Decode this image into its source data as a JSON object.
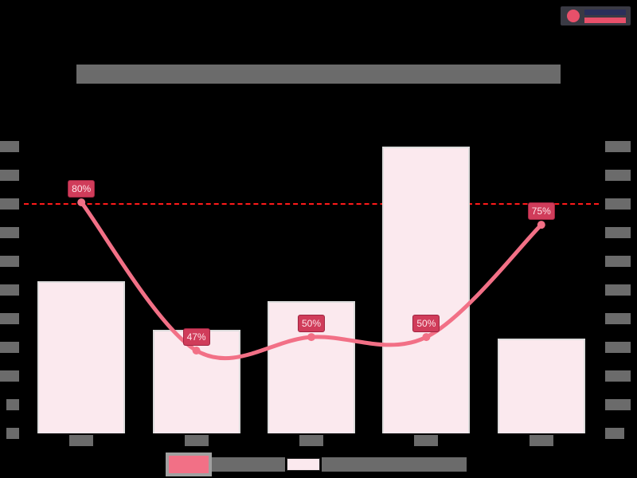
{
  "logo": {
    "name": ""
  },
  "chart_data": {
    "type": "bar",
    "title": "",
    "xlabel": "",
    "ylabel_left": "",
    "ylabel_right": "",
    "categories": [
      "",
      "",
      "",
      "",
      ""
    ],
    "left_axis_ticks": [
      "",
      "",
      "",
      "",
      "",
      "",
      "",
      "",
      "",
      "",
      ""
    ],
    "right_axis_ticks": [
      "",
      "",
      "",
      "",
      "",
      "",
      "",
      "",
      "",
      "",
      ""
    ],
    "series": [
      {
        "name": "",
        "type": "bar",
        "axis": "right",
        "color": "#fbe9ee",
        "relative_heights": [
          0.53,
          0.36,
          0.46,
          1.0,
          0.33
        ]
      },
      {
        "name": "",
        "type": "line",
        "axis": "left",
        "color": "#f27086",
        "smooth": true,
        "values": [
          80,
          47,
          50,
          50,
          75
        ],
        "data_labels": [
          "80%",
          "47%",
          "50%",
          "50%",
          "75%"
        ]
      }
    ],
    "reference_line": {
      "style": "dashed",
      "color": "#ff1a1a",
      "value": 80
    },
    "grid": false,
    "legend_position": "bottom"
  },
  "legend": [
    {
      "label": "",
      "kind": "line",
      "color": "#f27086"
    },
    {
      "label": "",
      "kind": "bar",
      "color": "#fbe9ee"
    }
  ]
}
